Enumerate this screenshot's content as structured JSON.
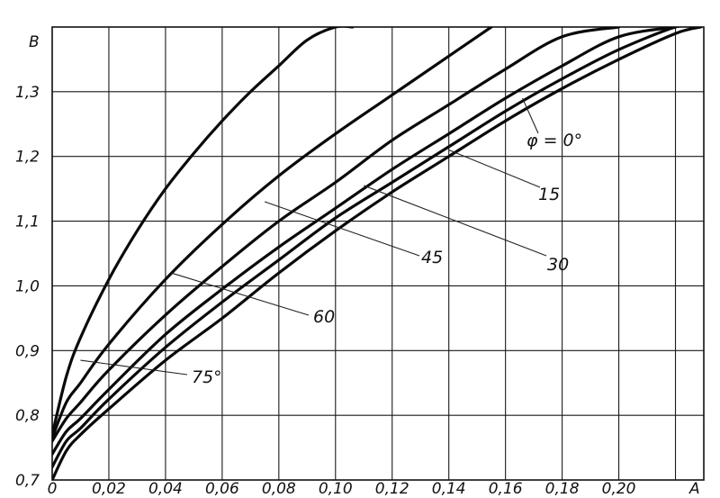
{
  "chart_data": {
    "type": "line",
    "title": "",
    "xlabel": "A",
    "ylabel": "B",
    "xlim": [
      0,
      0.23
    ],
    "ylim": [
      0.7,
      1.4
    ],
    "grid": true,
    "x_ticks": [
      "0",
      "0,02",
      "0,04",
      "0,06",
      "0,08",
      "0,10",
      "0,12",
      "0,14",
      "0,16",
      "0,18",
      "0,20"
    ],
    "y_ticks": [
      "0,7",
      "0,8",
      "0,9",
      "1,0",
      "1,1",
      "1,2",
      "1,3"
    ],
    "series": [
      {
        "name": "φ = 0°",
        "x": [
          0,
          0.005,
          0.01,
          0.02,
          0.04,
          0.06,
          0.08,
          0.1,
          0.12,
          0.14,
          0.16,
          0.18,
          0.2,
          0.22,
          0.229
        ],
        "y": [
          0.7,
          0.745,
          0.77,
          0.81,
          0.885,
          0.95,
          1.02,
          1.085,
          1.145,
          1.2,
          1.255,
          1.305,
          1.35,
          1.39,
          1.4
        ]
      },
      {
        "name": "15",
        "x": [
          0,
          0.005,
          0.01,
          0.02,
          0.04,
          0.06,
          0.08,
          0.1,
          0.12,
          0.14,
          0.16,
          0.18,
          0.2,
          0.22,
          0.226
        ],
        "y": [
          0.72,
          0.76,
          0.78,
          0.825,
          0.905,
          0.975,
          1.04,
          1.105,
          1.16,
          1.215,
          1.27,
          1.32,
          1.365,
          1.4,
          1.4
        ]
      },
      {
        "name": "30",
        "x": [
          0,
          0.005,
          0.01,
          0.02,
          0.04,
          0.06,
          0.08,
          0.1,
          0.12,
          0.14,
          0.16,
          0.18,
          0.2,
          0.22
        ],
        "y": [
          0.74,
          0.775,
          0.795,
          0.84,
          0.925,
          0.995,
          1.06,
          1.12,
          1.18,
          1.235,
          1.29,
          1.34,
          1.385,
          1.4
        ]
      },
      {
        "name": "45",
        "x": [
          0,
          0.005,
          0.01,
          0.02,
          0.04,
          0.06,
          0.08,
          0.1,
          0.12,
          0.14,
          0.16,
          0.18,
          0.2
        ],
        "y": [
          0.76,
          0.795,
          0.82,
          0.87,
          0.955,
          1.03,
          1.1,
          1.16,
          1.225,
          1.28,
          1.335,
          1.385,
          1.4
        ]
      },
      {
        "name": "60",
        "x": [
          0,
          0.005,
          0.01,
          0.02,
          0.04,
          0.06,
          0.08,
          0.1,
          0.12,
          0.14,
          0.155
        ],
        "y": [
          0.765,
          0.82,
          0.85,
          0.91,
          1.01,
          1.095,
          1.17,
          1.235,
          1.295,
          1.355,
          1.4
        ]
      },
      {
        "name": "75°",
        "x": [
          0,
          0.005,
          0.01,
          0.02,
          0.03,
          0.04,
          0.05,
          0.06,
          0.07,
          0.08,
          0.09,
          0.1,
          0.106
        ],
        "y": [
          0.77,
          0.86,
          0.92,
          1.01,
          1.085,
          1.15,
          1.205,
          1.255,
          1.3,
          1.34,
          1.38,
          1.4,
          1.4
        ]
      }
    ]
  }
}
